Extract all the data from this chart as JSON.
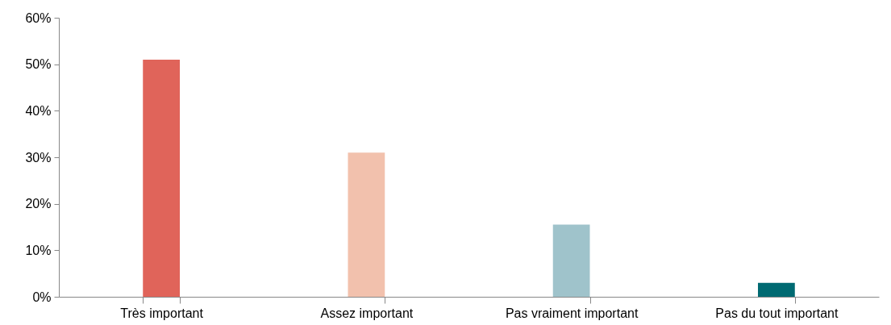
{
  "chart_data": {
    "type": "bar",
    "categories": [
      "Très important",
      "Assez important",
      "Pas vraiment important",
      "Pas du tout important"
    ],
    "values": [
      51,
      31,
      15.5,
      3
    ],
    "colors": [
      "#e0645a",
      "#f2c1ad",
      "#9fc3cb",
      "#006a72"
    ],
    "ylim": [
      0,
      60
    ],
    "yticks": [
      {
        "value": 0,
        "label": "0%"
      },
      {
        "value": 10,
        "label": "10%"
      },
      {
        "value": 20,
        "label": "20%"
      },
      {
        "value": 30,
        "label": "30%"
      },
      {
        "value": 40,
        "label": "40%"
      },
      {
        "value": 50,
        "label": "50%"
      },
      {
        "value": 60,
        "label": "60%"
      }
    ],
    "grid": false
  }
}
